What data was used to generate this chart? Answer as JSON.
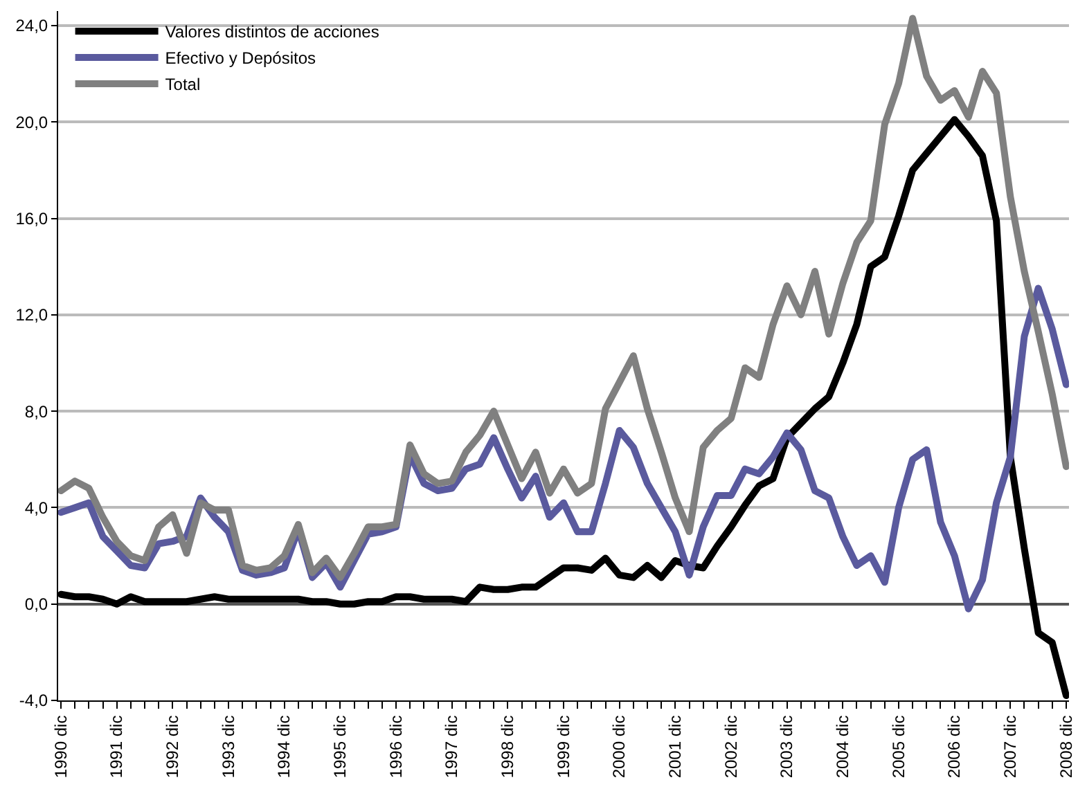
{
  "chart_data": {
    "type": "line",
    "categories": [
      "1990 dic",
      null,
      null,
      null,
      "1991 dic",
      null,
      null,
      null,
      "1992 dic",
      null,
      null,
      null,
      "1993 dic",
      null,
      null,
      null,
      "1994 dic",
      null,
      null,
      null,
      "1995 dic",
      null,
      null,
      null,
      "1996 dic",
      null,
      null,
      null,
      "1997 dic",
      null,
      null,
      null,
      "1998 dic",
      null,
      null,
      null,
      "1999 dic",
      null,
      null,
      null,
      "2000 dic",
      null,
      null,
      null,
      "2001 dic",
      null,
      null,
      null,
      "2002 dic",
      null,
      null,
      null,
      "2003 dic",
      null,
      null,
      null,
      "2004 dic",
      null,
      null,
      null,
      "2005 dic",
      null,
      null,
      null,
      "2006 dic",
      null,
      null,
      null,
      "2007 dic",
      null,
      null,
      null,
      "2008 dic"
    ],
    "series": [
      {
        "name": "Valores distintos de acciones",
        "color": "#000000",
        "values": [
          0.4,
          0.3,
          0.3,
          0.2,
          0.0,
          0.3,
          0.1,
          0.1,
          0.1,
          0.1,
          0.2,
          0.3,
          0.2,
          0.2,
          0.2,
          0.2,
          0.2,
          0.2,
          0.1,
          0.1,
          0.0,
          0.0,
          0.1,
          0.1,
          0.3,
          0.3,
          0.2,
          0.2,
          0.2,
          0.1,
          0.7,
          0.6,
          0.6,
          0.7,
          0.7,
          1.1,
          1.5,
          1.5,
          1.4,
          1.9,
          1.2,
          1.1,
          1.6,
          1.1,
          1.8,
          1.6,
          1.5,
          2.4,
          3.2,
          4.1,
          4.9,
          5.2,
          6.9,
          7.5,
          8.1,
          8.6,
          10.0,
          11.6,
          14.0,
          14.4,
          16.1,
          18.0,
          18.7,
          19.4,
          20.1,
          19.4,
          18.6,
          15.9,
          6.1,
          2.3,
          -1.2,
          -1.6,
          -3.8
        ]
      },
      {
        "name": "Efectivo y Depósitos",
        "color": "#5a5a9e",
        "values": [
          3.8,
          4.0,
          4.2,
          2.8,
          2.2,
          1.6,
          1.5,
          2.5,
          2.6,
          2.8,
          4.4,
          3.6,
          3.0,
          1.4,
          1.2,
          1.3,
          1.5,
          3.1,
          1.1,
          1.7,
          0.7,
          1.8,
          2.9,
          3.0,
          3.2,
          6.2,
          5.0,
          4.7,
          4.8,
          5.6,
          5.8,
          6.9,
          5.6,
          4.4,
          5.3,
          3.6,
          4.2,
          3.0,
          3.0,
          5.0,
          7.2,
          6.5,
          5.0,
          4.0,
          3.0,
          1.2,
          3.2,
          4.5,
          4.5,
          5.6,
          5.4,
          6.1,
          7.1,
          6.4,
          4.7,
          4.4,
          2.8,
          1.6,
          2.0,
          0.9,
          4.0,
          6.0,
          6.4,
          3.4,
          2.0,
          -0.2,
          1.0,
          4.2,
          6.1,
          11.1,
          13.1,
          11.4,
          9.1
        ]
      },
      {
        "name": "Total",
        "color": "#808080",
        "values": [
          4.7,
          5.1,
          4.8,
          3.6,
          2.6,
          2.0,
          1.8,
          3.2,
          3.7,
          2.1,
          4.2,
          3.9,
          3.9,
          1.6,
          1.4,
          1.5,
          2.0,
          3.3,
          1.3,
          1.9,
          1.1,
          2.1,
          3.2,
          3.2,
          3.3,
          6.6,
          5.4,
          5.0,
          5.1,
          6.3,
          7.0,
          8.0,
          6.6,
          5.2,
          6.3,
          4.6,
          5.6,
          4.6,
          5.0,
          8.1,
          9.2,
          10.3,
          8.1,
          6.3,
          4.4,
          3.0,
          6.5,
          7.2,
          7.7,
          9.8,
          9.4,
          11.6,
          13.2,
          12.0,
          13.8,
          11.2,
          13.3,
          15.0,
          15.9,
          19.9,
          21.6,
          24.3,
          21.9,
          20.9,
          21.3,
          20.2,
          22.1,
          21.2,
          16.9,
          13.8,
          11.3,
          8.7,
          5.7
        ]
      }
    ],
    "ylim": [
      -4,
      24.6
    ],
    "yticks": [
      {
        "value": -4,
        "label": "-4,0"
      },
      {
        "value": 0,
        "label": "0,0"
      },
      {
        "value": 4,
        "label": "4,0"
      },
      {
        "value": 8,
        "label": "8,0"
      },
      {
        "value": 12,
        "label": "12,0"
      },
      {
        "value": 16,
        "label": "16,0"
      },
      {
        "value": 20,
        "label": "20,0"
      },
      {
        "value": 24,
        "label": "24,0"
      }
    ],
    "grid": "y",
    "legend": "top left",
    "line_style": "solid",
    "marker": "none"
  }
}
